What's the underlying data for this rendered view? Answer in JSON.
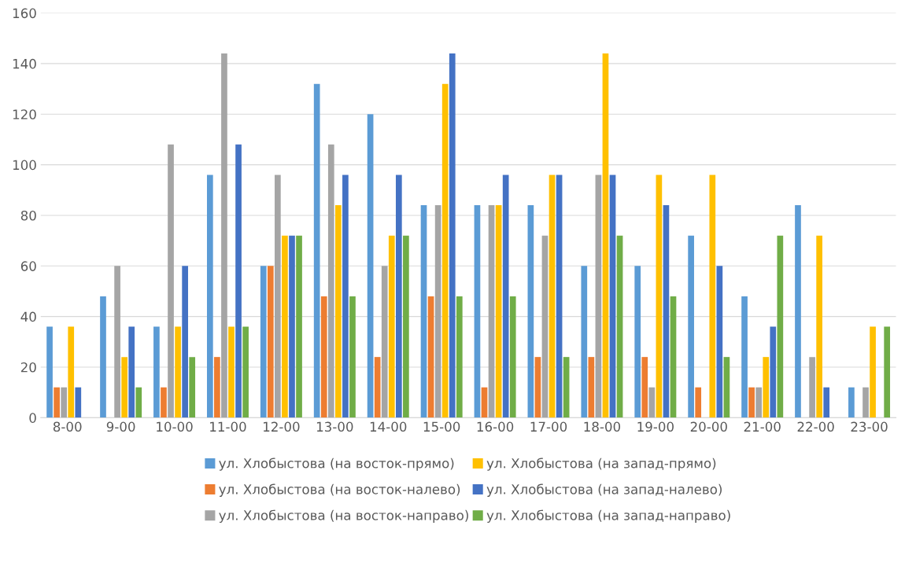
{
  "chart_data": {
    "type": "bar",
    "categories": [
      "8-00",
      "9-00",
      "10-00",
      "11-00",
      "12-00",
      "13-00",
      "14-00",
      "15-00",
      "16-00",
      "17-00",
      "18-00",
      "19-00",
      "20-00",
      "21-00",
      "22-00",
      "23-00"
    ],
    "series": [
      {
        "name": "ул. Хлобыстова (на восток-прямо)",
        "color": "#5b9bd5",
        "values": [
          36,
          48,
          36,
          96,
          60,
          132,
          120,
          84,
          84,
          84,
          60,
          60,
          72,
          48,
          84,
          12
        ]
      },
      {
        "name": "ул. Хлобыстова (на восток-налево)",
        "color": "#ed7d31",
        "values": [
          12,
          0,
          12,
          24,
          60,
          48,
          24,
          48,
          12,
          24,
          24,
          24,
          12,
          12,
          0,
          0
        ]
      },
      {
        "name": "ул. Хлобыстова (на восток-направо)",
        "color": "#a5a5a5",
        "values": [
          12,
          60,
          108,
          144,
          96,
          108,
          60,
          84,
          84,
          72,
          96,
          12,
          0,
          12,
          24,
          12
        ]
      },
      {
        "name": "ул. Хлобыстова (на запад-прямо)",
        "color": "#ffc000",
        "values": [
          36,
          24,
          36,
          36,
          72,
          84,
          72,
          132,
          84,
          96,
          144,
          96,
          96,
          24,
          72,
          36
        ]
      },
      {
        "name": "ул. Хлобыстова (на запад-налево)",
        "color": "#4472c4",
        "values": [
          12,
          36,
          60,
          108,
          72,
          96,
          96,
          144,
          96,
          96,
          96,
          84,
          60,
          36,
          12,
          0
        ]
      },
      {
        "name": "ул. Хлобыстова (на запад-направо)",
        "color": "#70ad47",
        "values": [
          0,
          12,
          24,
          36,
          72,
          48,
          72,
          48,
          48,
          24,
          72,
          48,
          24,
          72,
          0,
          36
        ]
      }
    ],
    "ylim": [
      0,
      160
    ],
    "yticks": [
      0,
      20,
      40,
      60,
      80,
      100,
      120,
      140,
      160
    ],
    "grid": "y",
    "legend": "bottom"
  }
}
